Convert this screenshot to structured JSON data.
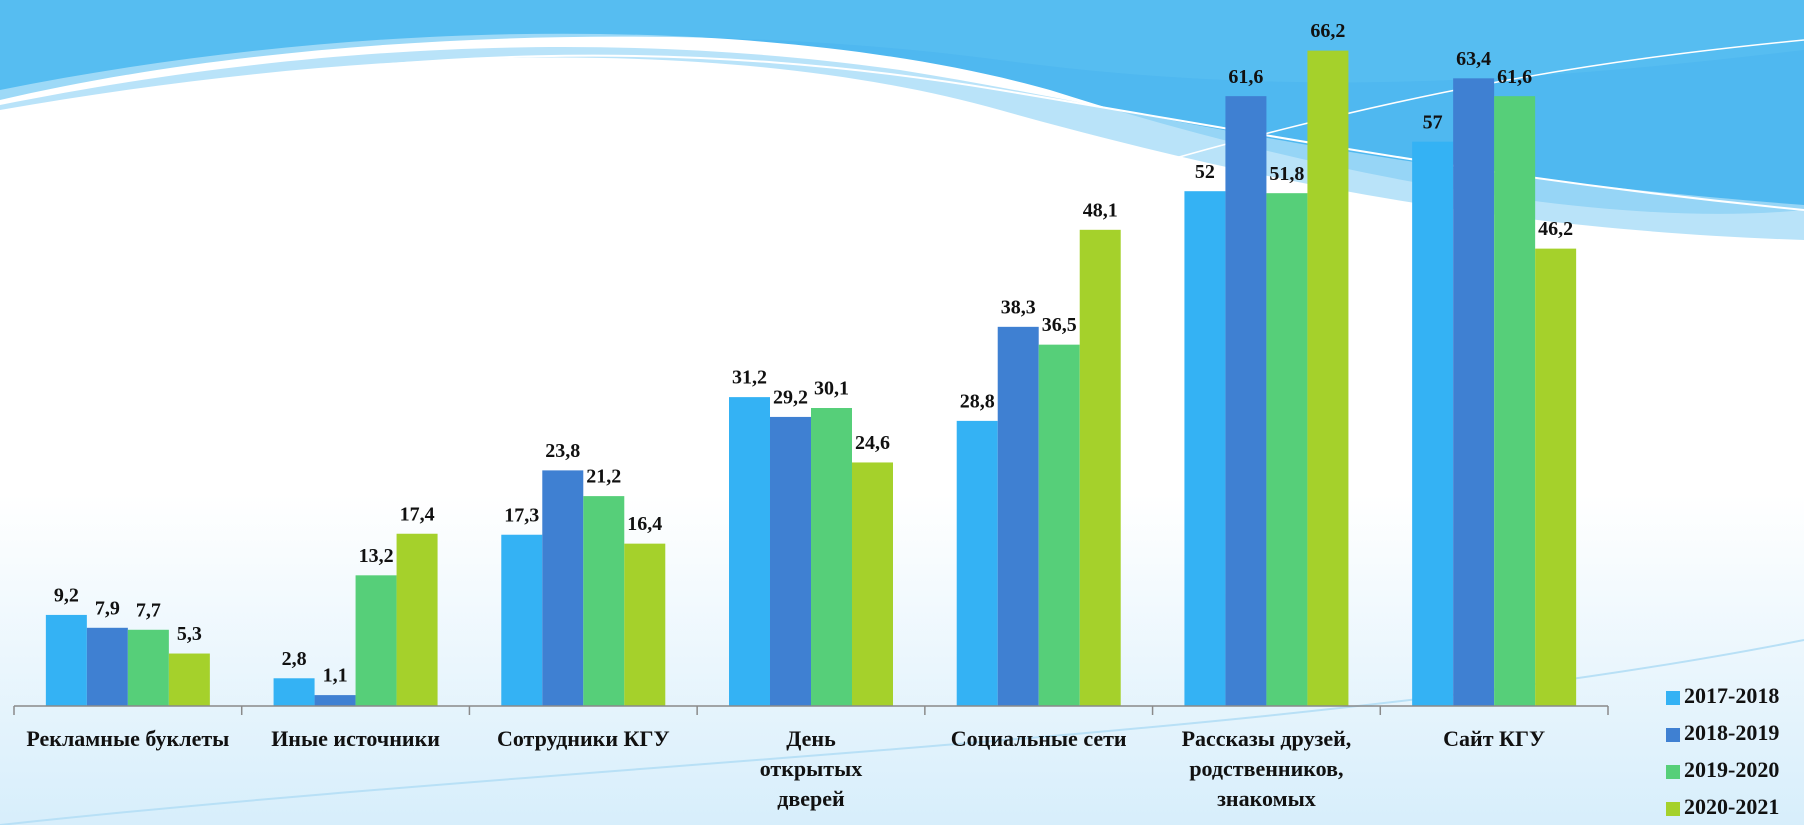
{
  "chart_data": {
    "type": "bar",
    "categories": [
      "Рекламные буклеты",
      "Иные источники",
      "Сотрудники КГУ",
      "День открытых дверей",
      "Социальные сети",
      "Рассказы друзей, родственников, знакомых",
      "Сайт КГУ"
    ],
    "series": [
      {
        "name": "2017-2018",
        "color": "#34b2f4",
        "values": [
          9.2,
          2.8,
          17.3,
          31.2,
          28.8,
          52,
          57
        ],
        "value_labels": [
          "9,2",
          "2,8",
          "17,3",
          "31,2",
          "28,8",
          "52",
          "57"
        ]
      },
      {
        "name": "2018-2019",
        "color": "#3f80d2",
        "values": [
          7.9,
          1.1,
          23.8,
          29.2,
          38.3,
          61.6,
          63.4
        ],
        "value_labels": [
          "7,9",
          "1,1",
          "23,8",
          "29,2",
          "38,3",
          "61,6",
          "63,4"
        ]
      },
      {
        "name": "2019-2020",
        "color": "#56cf79",
        "values": [
          7.7,
          13.2,
          21.2,
          30.1,
          36.5,
          51.8,
          61.6
        ],
        "value_labels": [
          "7,7",
          "13,2",
          "21,2",
          "30,1",
          "36,5",
          "51,8",
          "61,6"
        ]
      },
      {
        "name": "2020-2021",
        "color": "#a5d12b",
        "values": [
          5.3,
          17.4,
          16.4,
          24.6,
          48.1,
          66.2,
          46.2
        ],
        "value_labels": [
          "5,3",
          "17,4",
          "16,4",
          "24,6",
          "48,1",
          "66,2",
          "46,2"
        ]
      }
    ],
    "ylim": [
      0,
      70
    ],
    "legend": "right"
  }
}
